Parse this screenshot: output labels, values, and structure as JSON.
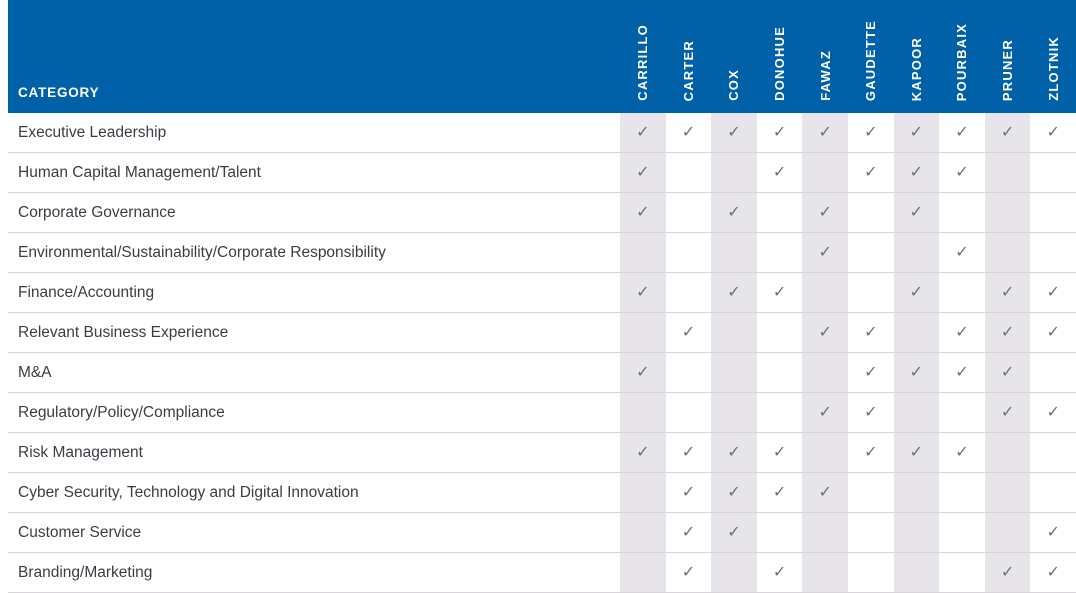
{
  "colors": {
    "header_bg": "#0061a9",
    "stripe": "#e8e5ea",
    "check": "#6e6e76",
    "row_border": "#d7d5d8",
    "label_text": "#3c3c46"
  },
  "chart_data": {
    "type": "table",
    "corner_header": "CATEGORY",
    "check_symbol": "✓",
    "columns": [
      "CARRILLO",
      "CARTER",
      "COX",
      "DONOHUE",
      "FAWAZ",
      "GAUDETTE",
      "KAPOOR",
      "POURBAIX",
      "PRUNER",
      "ZLOTNIK"
    ],
    "rows": [
      {
        "category": "Executive Leadership",
        "checks": [
          1,
          1,
          1,
          1,
          1,
          1,
          1,
          1,
          1,
          1
        ]
      },
      {
        "category": "Human Capital Management/Talent",
        "checks": [
          1,
          0,
          0,
          1,
          0,
          1,
          1,
          1,
          0,
          0
        ]
      },
      {
        "category": "Corporate Governance",
        "checks": [
          1,
          0,
          1,
          0,
          1,
          0,
          1,
          0,
          0,
          0
        ]
      },
      {
        "category": "Environmental/Sustainability/Corporate Responsibility",
        "checks": [
          0,
          0,
          0,
          0,
          1,
          0,
          0,
          1,
          0,
          0
        ]
      },
      {
        "category": "Finance/Accounting",
        "checks": [
          1,
          0,
          1,
          1,
          0,
          0,
          1,
          0,
          1,
          1
        ]
      },
      {
        "category": "Relevant Business Experience",
        "checks": [
          0,
          1,
          0,
          0,
          1,
          1,
          0,
          1,
          1,
          1
        ]
      },
      {
        "category": "M&A",
        "checks": [
          1,
          0,
          0,
          0,
          0,
          1,
          1,
          1,
          1,
          0
        ]
      },
      {
        "category": "Regulatory/Policy/Compliance",
        "checks": [
          0,
          0,
          0,
          0,
          1,
          1,
          0,
          0,
          1,
          1
        ]
      },
      {
        "category": "Risk Management",
        "checks": [
          1,
          1,
          1,
          1,
          0,
          1,
          1,
          1,
          0,
          0
        ]
      },
      {
        "category": "Cyber Security, Technology and Digital Innovation",
        "checks": [
          0,
          1,
          1,
          1,
          1,
          0,
          0,
          0,
          0,
          0
        ]
      },
      {
        "category": "Customer Service",
        "checks": [
          0,
          1,
          1,
          0,
          0,
          0,
          0,
          0,
          0,
          1
        ]
      },
      {
        "category": "Branding/Marketing",
        "checks": [
          0,
          1,
          0,
          1,
          0,
          0,
          0,
          0,
          1,
          1
        ]
      }
    ]
  }
}
